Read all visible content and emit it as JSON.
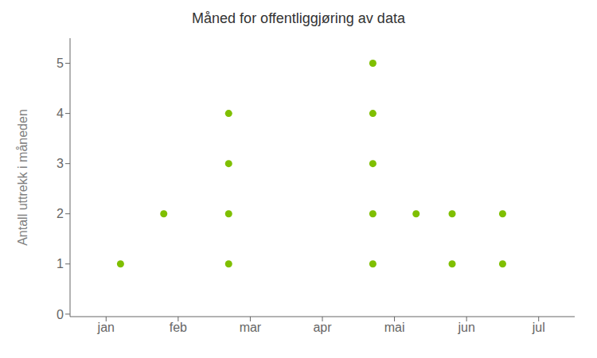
{
  "chart_data": {
    "type": "scatter",
    "title": "Måned for offentliggjøring av data",
    "ylabel": "Antall uttrekk i måneden",
    "x": [
      1.2,
      1.8,
      2.7,
      2.7,
      2.7,
      2.7,
      4.7,
      4.7,
      4.7,
      4.7,
      4.7,
      5.3,
      5.8,
      5.8,
      6.5,
      6.5
    ],
    "values": [
      1,
      2,
      1,
      2,
      3,
      4,
      1,
      2,
      3,
      4,
      5,
      2,
      1,
      2,
      1,
      2
    ],
    "color": "#7FBF00",
    "xlim": [
      0.5,
      7.5
    ],
    "xticks": [
      {
        "value": 1,
        "label": "jan"
      },
      {
        "value": 2,
        "label": "feb"
      },
      {
        "value": 3,
        "label": "mar"
      },
      {
        "value": 4,
        "label": "apr"
      },
      {
        "value": 5,
        "label": "mai"
      },
      {
        "value": 6,
        "label": "jun"
      },
      {
        "value": 7,
        "label": "jul"
      }
    ],
    "ylim": [
      -0.05,
      5.5
    ],
    "yticks": [
      0,
      1,
      2,
      3,
      4,
      5
    ],
    "grid": false
  }
}
